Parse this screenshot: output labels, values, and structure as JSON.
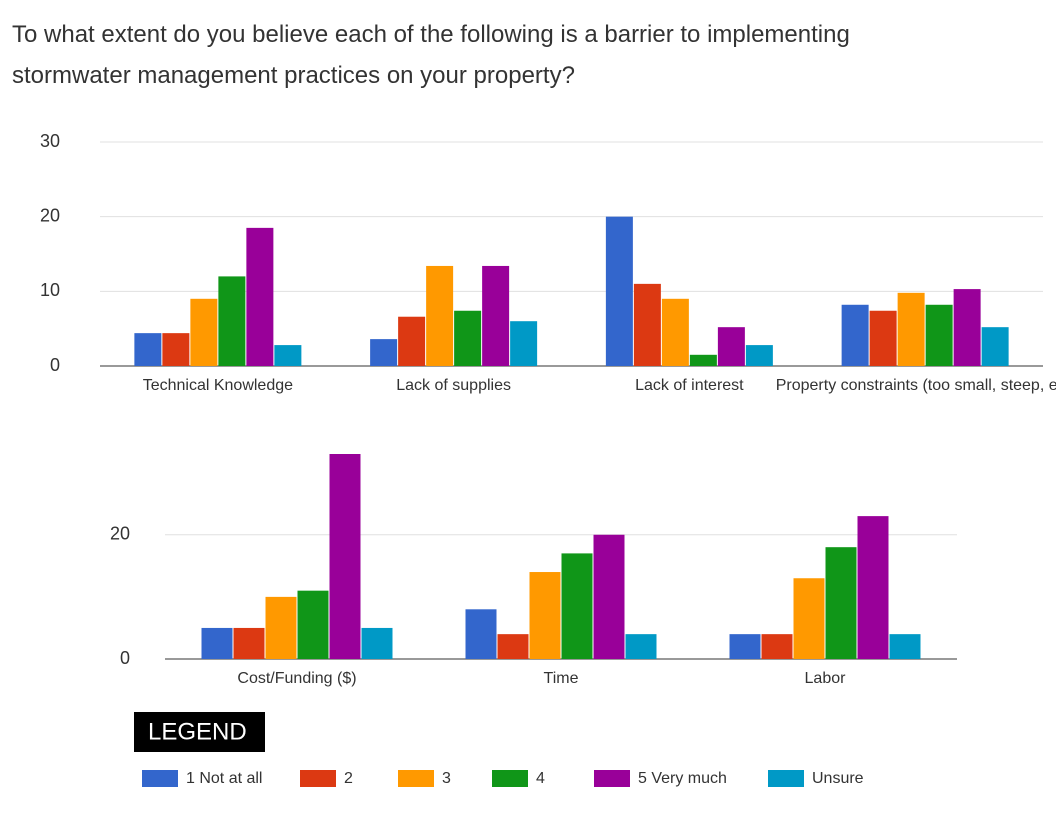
{
  "title": "To what extent do you believe each of the following is a barrier to implementing stormwater management practices on your property?",
  "legend_title": "LEGEND",
  "chart_data": [
    {
      "type": "bar",
      "categories": [
        "Technical Knowledge",
        "Lack of supplies",
        "Lack of interest",
        "Property constraints (too small, steep, etc."
      ],
      "series": [
        {
          "name": "1 Not at all",
          "color": "#3366cc",
          "values": [
            4.4,
            3.6,
            20,
            8.2
          ]
        },
        {
          "name": "2",
          "color": "#dc3912",
          "values": [
            4.4,
            6.6,
            11,
            7.4
          ]
        },
        {
          "name": "3",
          "color": "#ff9900",
          "values": [
            9,
            13.4,
            9,
            9.8
          ]
        },
        {
          "name": "4",
          "color": "#109618",
          "values": [
            12,
            7.4,
            1.5,
            8.2
          ]
        },
        {
          "name": "5 Very much",
          "color": "#990099",
          "values": [
            18.5,
            13.4,
            5.2,
            10.3
          ]
        },
        {
          "name": "Unsure",
          "color": "#0099c6",
          "values": [
            2.8,
            6,
            2.8,
            5.2
          ]
        }
      ],
      "ylim": [
        0,
        30
      ],
      "yticks": [
        0,
        10,
        20,
        30
      ],
      "grid": true
    },
    {
      "type": "bar",
      "categories": [
        "Cost/Funding ($)",
        "Time",
        "Labor"
      ],
      "series": [
        {
          "color": "#3366cc",
          "values": [
            5,
            8,
            4
          ]
        },
        {
          "color": "#dc3912",
          "values": [
            5,
            4,
            4
          ]
        },
        {
          "color": "#ff9900",
          "values": [
            10,
            14,
            13
          ]
        },
        {
          "color": "#109618",
          "values": [
            11,
            17,
            18
          ]
        },
        {
          "color": "#990099",
          "values": [
            33,
            20,
            23
          ]
        },
        {
          "color": "#0099c6",
          "values": [
            5,
            4,
            4
          ]
        }
      ],
      "ylim": [
        0,
        33
      ],
      "yticks": [
        0,
        20
      ],
      "grid": true
    }
  ]
}
